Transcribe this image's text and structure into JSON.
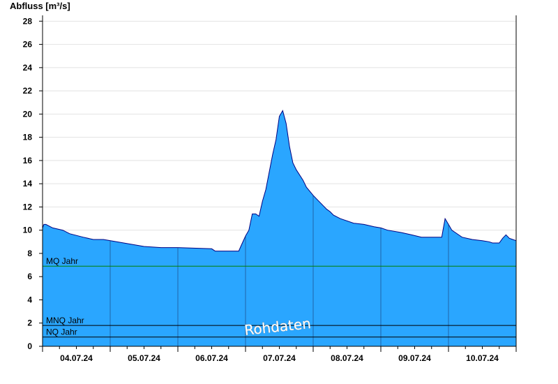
{
  "chart_data": {
    "type": "area",
    "ylabel": "Abfluss [m³/s]",
    "ylim": [
      0,
      28.5
    ],
    "yticks": [
      0,
      2,
      4,
      6,
      8,
      10,
      12,
      14,
      16,
      18,
      20,
      22,
      24,
      26,
      28
    ],
    "xlim": [
      0,
      7
    ],
    "day_labels": [
      "04.07.24",
      "05.07.24",
      "06.07.24",
      "07.07.24",
      "08.07.24",
      "09.07.24",
      "10.07.24"
    ],
    "grid": true,
    "watermark": "Rohdaten",
    "colors": {
      "fill": "#2aa6ff",
      "line": "#000080",
      "mq": "#008000",
      "refline": "#000000",
      "grid": "#e2e2e2"
    },
    "reference_lines": [
      {
        "label": "MQ Jahr",
        "value": 6.9,
        "color": "#008000"
      },
      {
        "label": "MNQ Jahr",
        "value": 1.8,
        "color": "#000000"
      },
      {
        "label": "NQ Jahr",
        "value": 0.8,
        "color": "#000000"
      }
    ],
    "series": [
      {
        "x": [
          0,
          0.02,
          0.05,
          0.15,
          0.3,
          0.4,
          0.6,
          0.75,
          0.9,
          1.2,
          1.5,
          1.75,
          1.85,
          2.0,
          2.5,
          2.55,
          2.65,
          2.9,
          2.93,
          3.0,
          3.05,
          3.1,
          3.15,
          3.2,
          3.25,
          3.3,
          3.4,
          3.45,
          3.5,
          3.55,
          3.6,
          3.65,
          3.7,
          3.75,
          3.85,
          3.9,
          4.0,
          4.05,
          4.1,
          4.2,
          4.25,
          4.3,
          4.4,
          4.6,
          4.75,
          4.9,
          5.0,
          5.1,
          5.3,
          5.45,
          5.6,
          5.9,
          5.95,
          6.0,
          6.05,
          6.1,
          6.2,
          6.35,
          6.5,
          6.6,
          6.65,
          6.75,
          6.8,
          6.85,
          6.9,
          6.95,
          7.0
        ],
        "y": [
          10.2,
          10.5,
          10.5,
          10.2,
          10.0,
          9.7,
          9.4,
          9.2,
          9.2,
          8.9,
          8.6,
          8.5,
          8.5,
          8.5,
          8.4,
          8.2,
          8.2,
          8.2,
          8.6,
          9.5,
          10.0,
          11.4,
          11.4,
          11.2,
          12.5,
          13.5,
          16.5,
          17.8,
          19.8,
          20.3,
          19.2,
          17.2,
          15.8,
          15.2,
          14.3,
          13.7,
          13.0,
          12.7,
          12.4,
          11.8,
          11.6,
          11.3,
          11.0,
          10.6,
          10.5,
          10.3,
          10.2,
          10.0,
          9.8,
          9.6,
          9.4,
          9.4,
          11.0,
          10.5,
          10.0,
          9.8,
          9.4,
          9.2,
          9.1,
          9.0,
          8.9,
          8.9,
          9.3,
          9.6,
          9.3,
          9.2,
          9.1
        ]
      }
    ]
  }
}
